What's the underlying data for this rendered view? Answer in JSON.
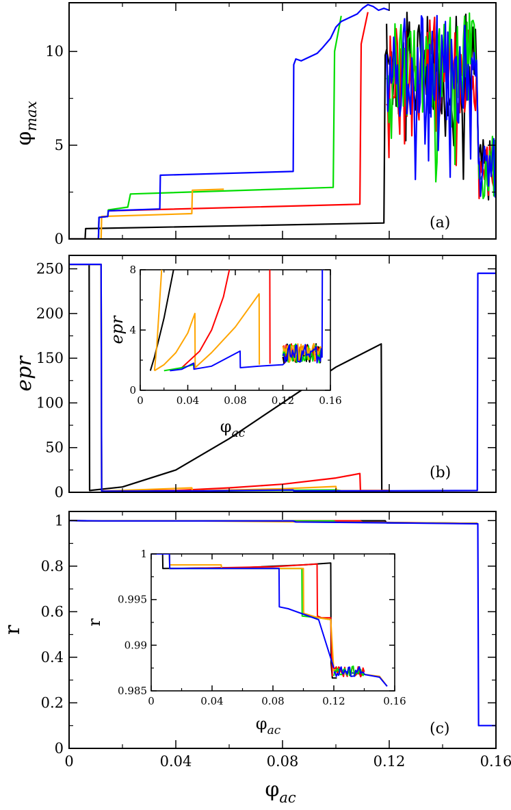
{
  "colors": {
    "black": "#000000",
    "red": "#ff0000",
    "green": "#00dd00",
    "blue": "#0000ff",
    "orange": "#ffa500",
    "label": "#9b30c8"
  },
  "chart_data": [
    {
      "id": "a",
      "type": "line",
      "panel_label": "(a)",
      "xlabel": "",
      "ylabel": "φ",
      "ylabel_sub": "max",
      "xlim": [
        0,
        0.16
      ],
      "ylim": [
        0,
        12.6
      ],
      "xticks": [
        0,
        0.04,
        0.08,
        0.12,
        0.16
      ],
      "yticks": [
        0,
        5,
        10
      ],
      "ytick_labels": [
        "0",
        "5",
        "10"
      ],
      "show_xtick_labels": false,
      "series": [
        {
          "name": "black",
          "color": "black",
          "x": [
            0,
            0.006,
            0.0062,
            0.118,
            0.1185,
            0.119,
            0.12
          ],
          "y": [
            0,
            0,
            0.55,
            0.85,
            9.8,
            10.1,
            9.3
          ]
        },
        {
          "name": "red",
          "color": "red",
          "x": [
            0,
            0.011,
            0.0112,
            0.0145,
            0.0147,
            0.109,
            0.1095,
            0.112
          ],
          "y": [
            0,
            0,
            1.15,
            1.2,
            1.5,
            1.85,
            10.4,
            12.1
          ]
        },
        {
          "name": "green",
          "color": "green",
          "x": [
            0,
            0.011,
            0.0112,
            0.0145,
            0.0147,
            0.022,
            0.023,
            0.099,
            0.0995,
            0.102
          ],
          "y": [
            0,
            0,
            1.15,
            1.2,
            1.55,
            1.7,
            2.4,
            2.75,
            10.0,
            11.9
          ]
        },
        {
          "name": "orange",
          "color": "orange",
          "x": [
            0,
            0.012,
            0.0122,
            0.046,
            0.0462,
            0.058
          ],
          "y": [
            0,
            0,
            1.2,
            1.35,
            2.6,
            2.65
          ]
        },
        {
          "name": "blue",
          "color": "blue",
          "x": [
            0,
            0.011,
            0.0112,
            0.0145,
            0.0147,
            0.034,
            0.0342,
            0.084,
            0.0842,
            0.085,
            0.087,
            0.09,
            0.093,
            0.095,
            0.098,
            0.1,
            0.102,
            0.105,
            0.108,
            0.11,
            0.112,
            0.114,
            0.116,
            0.118,
            0.12
          ],
          "y": [
            0,
            0,
            1.15,
            1.2,
            1.5,
            1.6,
            3.4,
            3.6,
            9.3,
            9.6,
            9.5,
            9.7,
            9.9,
            10.2,
            10.7,
            11.3,
            11.6,
            11.8,
            12.0,
            12.3,
            12.5,
            12.4,
            12.2,
            12.3,
            12.2
          ]
        }
      ]
    },
    {
      "id": "b",
      "type": "line",
      "panel_label": "(b)",
      "xlabel": "",
      "ylabel": "epr",
      "xlim": [
        0,
        0.16
      ],
      "ylim": [
        0,
        265
      ],
      "xticks": [
        0,
        0.04,
        0.08,
        0.12,
        0.16
      ],
      "yticks": [
        0,
        50,
        100,
        150,
        200,
        250
      ],
      "ytick_labels": [
        "0",
        "50",
        "100",
        "150",
        "200",
        "250"
      ],
      "show_xtick_labels": false,
      "series": [
        {
          "name": "black",
          "color": "black",
          "x": [
            0,
            0.0075,
            0.0077,
            0.02,
            0.04,
            0.06,
            0.08,
            0.1,
            0.117,
            0.1172,
            0.12
          ],
          "y": [
            255,
            255,
            2,
            6,
            25,
            60,
            100,
            140,
            166,
            2,
            2
          ]
        },
        {
          "name": "red",
          "color": "red",
          "x": [
            0,
            0.012,
            0.0122,
            0.04,
            0.06,
            0.08,
            0.1,
            0.109,
            0.1092,
            0.12
          ],
          "y": [
            255,
            255,
            1.5,
            2,
            5,
            9,
            16,
            21,
            2,
            2
          ]
        },
        {
          "name": "green",
          "color": "green",
          "x": [
            0,
            0.012,
            0.0122,
            0.05,
            0.1,
            0.102,
            0.12
          ],
          "y": [
            255,
            255,
            1.2,
            1.5,
            2.6,
            1.8,
            1.8
          ]
        },
        {
          "name": "orange",
          "color": "orange",
          "x": [
            0,
            0.012,
            0.0122,
            0.046,
            0.0462,
            0.08,
            0.1,
            0.1002,
            0.12
          ],
          "y": [
            255,
            255,
            1.3,
            5,
            1.5,
            4,
            6.5,
            1.8,
            1.8
          ]
        },
        {
          "name": "blue",
          "color": "blue",
          "x": [
            0,
            0.012,
            0.0122,
            0.05,
            0.084,
            0.0842,
            0.12,
            0.153,
            0.1532,
            0.16
          ],
          "y": [
            255,
            255,
            1.3,
            1.5,
            2.6,
            1.5,
            1.7,
            2,
            245,
            245
          ]
        }
      ],
      "inset": {
        "xlabel": "φ",
        "xlabel_sub": "ac",
        "ylabel": "epr",
        "xlim": [
          0,
          0.16
        ],
        "ylim": [
          0,
          8
        ],
        "xticks": [
          0,
          0.04,
          0.08,
          0.12,
          0.16
        ],
        "xtick_labels": [
          "0",
          "0.04",
          "0.08",
          "0.12",
          "0.16"
        ],
        "yticks": [
          0,
          4,
          8
        ],
        "ytick_labels": [
          "0",
          "4",
          "8"
        ],
        "series": [
          {
            "name": "black",
            "color": "black",
            "x": [
              0.0085,
              0.012,
              0.02,
              0.028
            ],
            "y": [
              1.3,
              2.2,
              4.8,
              8
            ]
          },
          {
            "name": "orange",
            "color": "orange",
            "x": [
              0.012,
              0.014,
              0.016,
              0.018
            ],
            "y": [
              1.3,
              3,
              5.5,
              8
            ]
          },
          {
            "name": "orange",
            "color": "orange",
            "x": [
              0.012,
              0.02,
              0.03,
              0.04,
              0.046,
              0.0462,
              0.06,
              0.08,
              0.1,
              0.1002
            ],
            "y": [
              1.3,
              1.7,
              2.5,
              3.8,
              5.1,
              1.5,
              2.5,
              4.2,
              6.4,
              1.7
            ]
          },
          {
            "name": "red",
            "color": "red",
            "x": [
              0.035,
              0.05,
              0.06,
              0.07,
              0.075
            ],
            "y": [
              1.5,
              2.6,
              4,
              6.2,
              8
            ]
          },
          {
            "name": "red",
            "color": "red",
            "x": [
              0.109,
              0.1092,
              0.1096
            ],
            "y": [
              8,
              1.8,
              1.8
            ]
          },
          {
            "name": "green",
            "color": "green",
            "x": [
              0.02,
              0.035,
              0.045,
              0.0452
            ],
            "y": [
              1.3,
              1.5,
              1.7,
              1.5
            ]
          },
          {
            "name": "blue",
            "color": "blue",
            "x": [
              0.025,
              0.035,
              0.045,
              0.0452,
              0.06,
              0.084,
              0.0842,
              0.1,
              0.12,
              0.13,
              0.14,
              0.15,
              0.153,
              0.1532
            ],
            "y": [
              1.3,
              1.4,
              1.8,
              1.4,
              1.6,
              2.6,
              1.5,
              1.6,
              1.7,
              2.5,
              2.3,
              2.4,
              2.2,
              8
            ]
          }
        ]
      }
    },
    {
      "id": "c",
      "type": "line",
      "panel_label": "(c)",
      "xlabel": "φ",
      "xlabel_sub": "ac",
      "ylabel": "r",
      "xlim": [
        0,
        0.16
      ],
      "ylim": [
        0,
        1.04
      ],
      "xticks": [
        0,
        0.04,
        0.08,
        0.12,
        0.16
      ],
      "xtick_labels": [
        "0",
        "0.04",
        "0.08",
        "0.12",
        "0.16"
      ],
      "yticks": [
        0,
        0.2,
        0.4,
        0.6,
        0.8,
        1
      ],
      "ytick_labels": [
        "0",
        "0.2",
        "0.4",
        "0.6",
        "0.8",
        "1"
      ],
      "show_xtick_labels": true,
      "series": [
        {
          "name": "black",
          "color": "black",
          "x": [
            0,
            0.0075,
            0.1185,
            0.119,
            0.153
          ],
          "y": [
            1,
            0.9985,
            0.999,
            0.99,
            0.988
          ]
        },
        {
          "name": "red",
          "color": "red",
          "x": [
            0,
            0.012,
            0.109,
            0.11,
            0.153
          ],
          "y": [
            1,
            0.9985,
            0.999,
            0.993,
            0.988
          ]
        },
        {
          "name": "green",
          "color": "green",
          "x": [
            0,
            0.012,
            0.099,
            0.1,
            0.153
          ],
          "y": [
            1,
            0.9985,
            0.9985,
            0.993,
            0.988
          ]
        },
        {
          "name": "orange",
          "color": "orange",
          "x": [
            0,
            0.012,
            0.046,
            0.1,
            0.153
          ],
          "y": [
            1,
            0.9985,
            0.9985,
            0.993,
            0.988
          ]
        },
        {
          "name": "blue",
          "color": "blue",
          "x": [
            0,
            0.012,
            0.084,
            0.085,
            0.12,
            0.1532,
            0.1535,
            0.16
          ],
          "y": [
            1,
            0.9985,
            0.9985,
            0.994,
            0.99,
            0.986,
            0.1,
            0.1
          ]
        }
      ],
      "inset": {
        "xlabel": "φ",
        "xlabel_sub": "ac",
        "ylabel": "r",
        "xlim": [
          0,
          0.16
        ],
        "ylim": [
          0.985,
          1.0
        ],
        "xticks": [
          0,
          0.04,
          0.08,
          0.12,
          0.16
        ],
        "xtick_labels": [
          "0",
          "0.04",
          "0.08",
          "0.12",
          "0.16"
        ],
        "yticks": [
          0.985,
          0.99,
          0.995,
          1
        ],
        "ytick_labels": [
          "0.985",
          "0.99",
          "0.995",
          "1"
        ],
        "series": [
          {
            "name": "black",
            "color": "black",
            "x": [
              0,
              0.0075,
              0.0077,
              0.06,
              0.1,
              0.118,
              0.1182,
              0.119,
              0.1192,
              0.122
            ],
            "y": [
              1,
              1,
              0.9984,
              0.9985,
              0.9988,
              0.999,
              0.988,
              0.9864,
              0.9864,
              0.9864
            ]
          },
          {
            "name": "red",
            "color": "red",
            "x": [
              0,
              0.012,
              0.0122,
              0.05,
              0.08,
              0.109,
              0.1092,
              0.112,
              0.118,
              0.119
            ],
            "y": [
              1,
              1,
              0.9984,
              0.9985,
              0.9986,
              0.9989,
              0.9932,
              0.993,
              0.993,
              0.9866
            ]
          },
          {
            "name": "green",
            "color": "green",
            "x": [
              0,
              0.012,
              0.0122,
              0.05,
              0.099,
              0.0992,
              0.11,
              0.118
            ],
            "y": [
              1,
              1,
              0.9984,
              0.9984,
              0.9984,
              0.9932,
              0.993,
              0.9928
            ]
          },
          {
            "name": "orange",
            "color": "orange",
            "x": [
              0,
              0.012,
              0.0122,
              0.046,
              0.0462,
              0.08,
              0.1,
              0.1002,
              0.11,
              0.118,
              0.12,
              0.13,
              0.14,
              0.15,
              0.155
            ],
            "y": [
              1,
              1,
              0.9988,
              0.9988,
              0.9984,
              0.9984,
              0.9984,
              0.9935,
              0.993,
              0.9928,
              0.9872,
              0.987,
              0.9868,
              0.9866,
              0.9855
            ]
          },
          {
            "name": "blue",
            "color": "blue",
            "x": [
              0,
              0.012,
              0.0122,
              0.05,
              0.084,
              0.0842,
              0.09,
              0.1,
              0.11,
              0.12,
              0.13,
              0.14,
              0.15,
              0.155
            ],
            "y": [
              1,
              1,
              0.9984,
              0.9984,
              0.9984,
              0.9942,
              0.994,
              0.9934,
              0.9928,
              0.9875,
              0.987,
              0.9868,
              0.9865,
              0.9855
            ]
          }
        ]
      }
    }
  ]
}
